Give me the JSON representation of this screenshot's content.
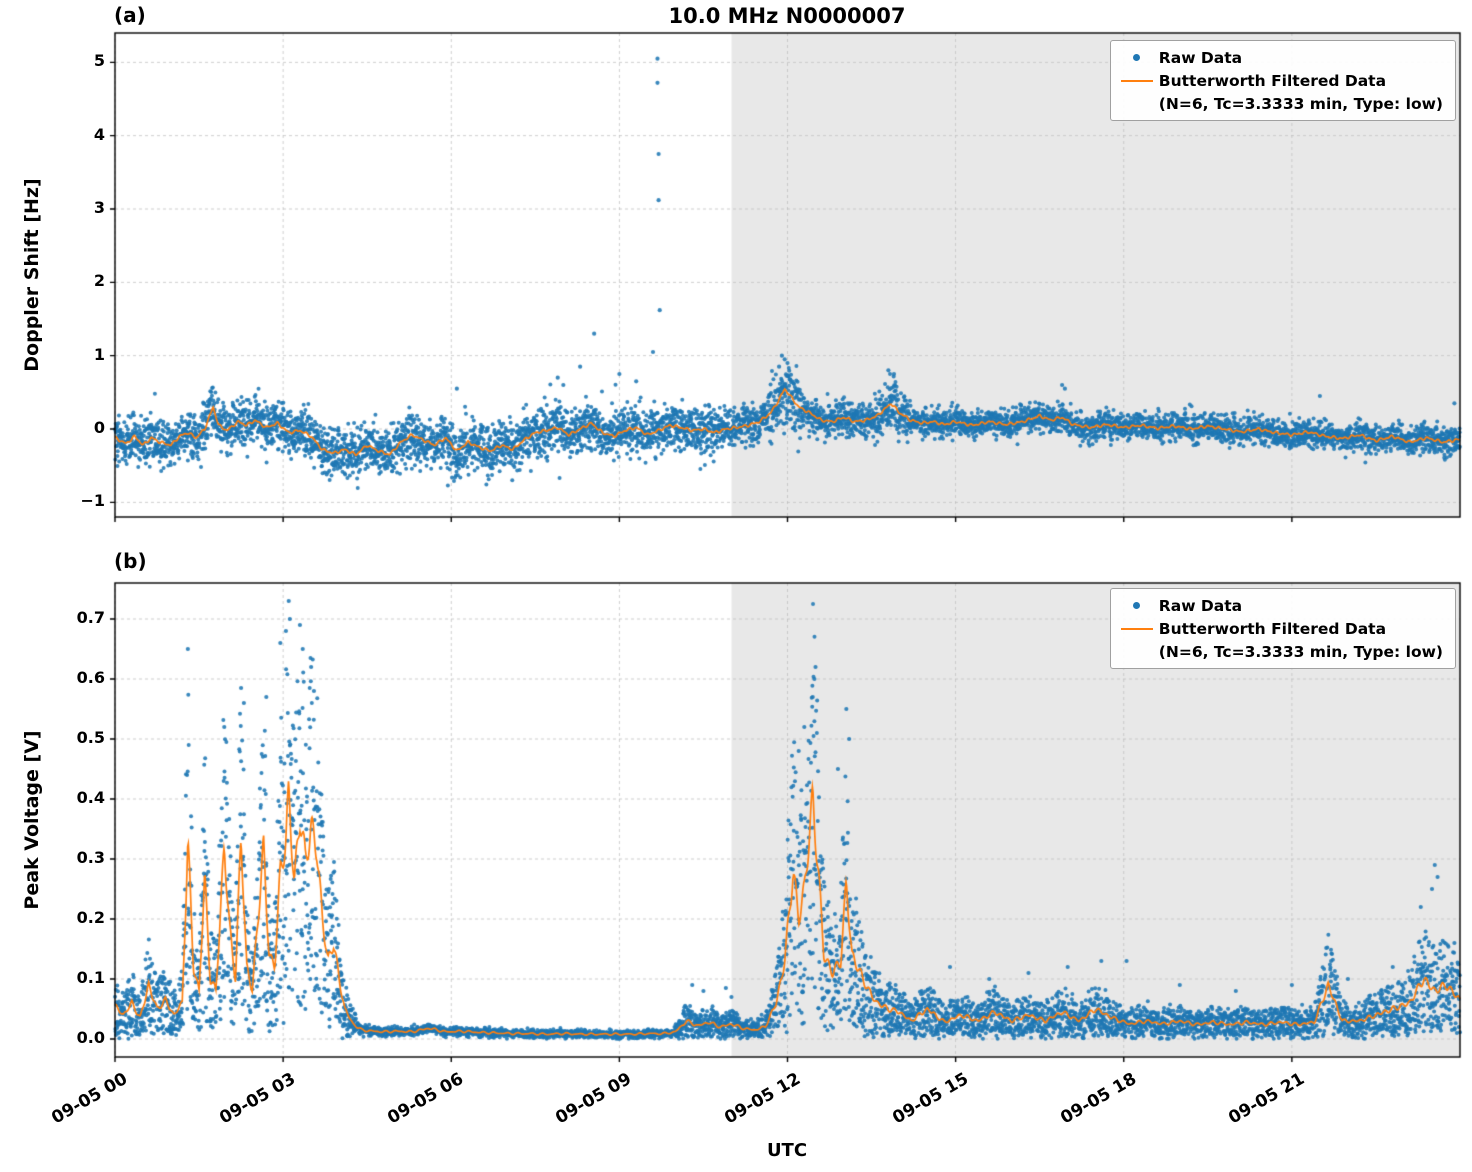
{
  "title": "10.0 MHz N0000007",
  "xlabel": "UTC",
  "legend": {
    "raw_label": "Raw Data",
    "filtered_label": "Butterworth Filtered Data",
    "filtered_params": "(N=6, Tc=3.3333 min, Type: low)"
  },
  "colors": {
    "raw": "#1f77b4",
    "filtered": "#ff7f0e",
    "shade": "rgba(0,0,0,0.09)",
    "grid": "#bbbbbb",
    "spine": "#000000"
  },
  "x_range": [
    0,
    24
  ],
  "shaded_region": [
    11.0,
    24
  ],
  "x_ticks": {
    "values": [
      0,
      3,
      6,
      9,
      12,
      15,
      18,
      21
    ],
    "labels": [
      "09-05 00",
      "09-05 03",
      "09-05 06",
      "09-05 09",
      "09-05 12",
      "09-05 15",
      "09-05 18",
      "09-05 21"
    ]
  },
  "chart_data": [
    {
      "type": "scatter",
      "label": "(a)",
      "ylabel": "Doppler Shift [Hz]",
      "ylim": [
        -1.2,
        5.4
      ],
      "y_ticks": {
        "values": [
          -1,
          0,
          1,
          2,
          3,
          4,
          5
        ],
        "labels": [
          "−1",
          "0",
          "1",
          "2",
          "3",
          "4",
          "5"
        ]
      },
      "series": [
        {
          "name": "Raw Data",
          "kind": "scatter"
        },
        {
          "name": "Butterworth Filtered Data (N=6, Tc=3.3333 min, Type: low)",
          "kind": "line"
        }
      ],
      "filtered_points": [
        [
          0,
          -0.12
        ],
        [
          0.2,
          -0.2
        ],
        [
          0.35,
          -0.1
        ],
        [
          0.5,
          -0.22
        ],
        [
          0.65,
          -0.12
        ],
        [
          0.8,
          -0.18
        ],
        [
          1.0,
          -0.22
        ],
        [
          1.15,
          -0.1
        ],
        [
          1.3,
          -0.05
        ],
        [
          1.45,
          -0.12
        ],
        [
          1.6,
          0.0
        ],
        [
          1.75,
          0.3
        ],
        [
          1.85,
          0.05
        ],
        [
          2.0,
          -0.02
        ],
        [
          2.2,
          0.1
        ],
        [
          2.35,
          0.05
        ],
        [
          2.5,
          0.12
        ],
        [
          2.7,
          0.02
        ],
        [
          2.9,
          0.08
        ],
        [
          3.1,
          -0.05
        ],
        [
          3.3,
          -0.02
        ],
        [
          3.5,
          -0.1
        ],
        [
          3.7,
          -0.28
        ],
        [
          3.9,
          -0.33
        ],
        [
          4.1,
          -0.28
        ],
        [
          4.3,
          -0.35
        ],
        [
          4.5,
          -0.22
        ],
        [
          4.7,
          -0.3
        ],
        [
          4.9,
          -0.35
        ],
        [
          5.1,
          -0.18
        ],
        [
          5.3,
          -0.08
        ],
        [
          5.5,
          -0.15
        ],
        [
          5.7,
          -0.22
        ],
        [
          5.9,
          -0.12
        ],
        [
          6.1,
          -0.3
        ],
        [
          6.3,
          -0.18
        ],
        [
          6.5,
          -0.25
        ],
        [
          6.7,
          -0.3
        ],
        [
          6.9,
          -0.22
        ],
        [
          7.1,
          -0.28
        ],
        [
          7.3,
          -0.15
        ],
        [
          7.5,
          -0.05
        ],
        [
          7.7,
          -0.02
        ],
        [
          7.9,
          0.02
        ],
        [
          8.1,
          -0.08
        ],
        [
          8.3,
          0.0
        ],
        [
          8.5,
          0.08
        ],
        [
          8.7,
          -0.05
        ],
        [
          8.9,
          -0.1
        ],
        [
          9.1,
          -0.02
        ],
        [
          9.3,
          0.02
        ],
        [
          9.5,
          -0.08
        ],
        [
          9.7,
          -0.02
        ],
        [
          9.9,
          0.05
        ],
        [
          10.1,
          0.02
        ],
        [
          10.3,
          -0.02
        ],
        [
          10.5,
          0.0
        ],
        [
          10.7,
          -0.05
        ],
        [
          10.9,
          0.0
        ],
        [
          11.1,
          0.02
        ],
        [
          11.3,
          0.05
        ],
        [
          11.5,
          0.1
        ],
        [
          11.7,
          0.22
        ],
        [
          11.85,
          0.4
        ],
        [
          11.95,
          0.55
        ],
        [
          12.05,
          0.45
        ],
        [
          12.2,
          0.3
        ],
        [
          12.4,
          0.22
        ],
        [
          12.6,
          0.12
        ],
        [
          12.8,
          0.1
        ],
        [
          13.0,
          0.16
        ],
        [
          13.2,
          0.1
        ],
        [
          13.4,
          0.12
        ],
        [
          13.6,
          0.18
        ],
        [
          13.85,
          0.35
        ],
        [
          14.0,
          0.22
        ],
        [
          14.2,
          0.12
        ],
        [
          14.4,
          0.08
        ],
        [
          14.6,
          0.1
        ],
        [
          14.8,
          0.06
        ],
        [
          15.0,
          0.1
        ],
        [
          15.3,
          0.05
        ],
        [
          15.6,
          0.1
        ],
        [
          15.9,
          0.06
        ],
        [
          16.2,
          0.1
        ],
        [
          16.5,
          0.18
        ],
        [
          16.7,
          0.12
        ],
        [
          16.9,
          0.16
        ],
        [
          17.1,
          0.06
        ],
        [
          17.4,
          0.02
        ],
        [
          17.7,
          0.06
        ],
        [
          18.0,
          0.02
        ],
        [
          18.3,
          0.05
        ],
        [
          18.6,
          0.01
        ],
        [
          18.9,
          0.04
        ],
        [
          19.2,
          0.0
        ],
        [
          19.5,
          0.04
        ],
        [
          19.8,
          0.0
        ],
        [
          20.1,
          -0.04
        ],
        [
          20.4,
          0.0
        ],
        [
          20.7,
          -0.05
        ],
        [
          21.0,
          -0.08
        ],
        [
          21.3,
          -0.04
        ],
        [
          21.6,
          -0.1
        ],
        [
          21.9,
          -0.13
        ],
        [
          22.2,
          -0.08
        ],
        [
          22.5,
          -0.16
        ],
        [
          22.8,
          -0.1
        ],
        [
          23.1,
          -0.18
        ],
        [
          23.4,
          -0.12
        ],
        [
          23.7,
          -0.18
        ],
        [
          24,
          -0.14
        ]
      ],
      "raw_noise": {
        "n_points": 6500,
        "segments": [
          [
            0,
            10.8,
            0.16
          ],
          [
            10.8,
            14,
            0.12
          ],
          [
            14,
            24,
            0.095
          ]
        ],
        "boosts": [
          [
            11.95,
            0.3,
            1.7
          ],
          [
            13.85,
            0.3,
            1.4
          ]
        ],
        "low_tail_range": [
          2.5,
          9.6
        ],
        "low_tail_chance": 0.012,
        "high_tail_range": [
          7.2,
          9.6
        ],
        "high_tail_chance": 0.02
      },
      "outliers": [
        [
          9.68,
          5.05
        ],
        [
          9.68,
          4.72
        ],
        [
          9.7,
          3.75
        ],
        [
          9.7,
          3.12
        ],
        [
          9.72,
          1.62
        ],
        [
          9.6,
          1.05
        ],
        [
          8.55,
          1.3
        ],
        [
          8.3,
          0.85
        ],
        [
          7.9,
          0.7
        ],
        [
          8.0,
          0.6
        ],
        [
          9.0,
          0.75
        ],
        [
          9.3,
          0.65
        ],
        [
          6.1,
          0.55
        ],
        [
          11.9,
          1.0
        ],
        [
          11.95,
          0.95
        ],
        [
          12.0,
          0.9
        ],
        [
          11.85,
          0.85
        ],
        [
          13.8,
          0.8
        ],
        [
          13.9,
          0.75
        ],
        [
          16.9,
          0.6
        ],
        [
          16.95,
          0.55
        ],
        [
          21.5,
          0.45
        ],
        [
          23.9,
          0.35
        ]
      ]
    },
    {
      "type": "scatter",
      "label": "(b)",
      "ylabel": "Peak Voltage [V]",
      "ylim": [
        -0.03,
        0.76
      ],
      "y_ticks": {
        "values": [
          0.0,
          0.1,
          0.2,
          0.3,
          0.4,
          0.5,
          0.6,
          0.7
        ],
        "labels": [
          "0.0",
          "0.1",
          "0.2",
          "0.3",
          "0.4",
          "0.5",
          "0.6",
          "0.7"
        ]
      },
      "series": [
        {
          "name": "Raw Data",
          "kind": "scatter"
        },
        {
          "name": "Butterworth Filtered Data (N=6, Tc=3.3333 min, Type: low)",
          "kind": "line"
        }
      ],
      "filtered_points": [
        [
          0,
          0.055
        ],
        [
          0.15,
          0.04
        ],
        [
          0.3,
          0.06
        ],
        [
          0.45,
          0.035
        ],
        [
          0.6,
          0.09
        ],
        [
          0.75,
          0.05
        ],
        [
          0.9,
          0.065
        ],
        [
          1.05,
          0.04
        ],
        [
          1.2,
          0.06
        ],
        [
          1.3,
          0.33
        ],
        [
          1.4,
          0.12
        ],
        [
          1.5,
          0.08
        ],
        [
          1.6,
          0.27
        ],
        [
          1.7,
          0.1
        ],
        [
          1.8,
          0.08
        ],
        [
          1.95,
          0.32
        ],
        [
          2.05,
          0.18
        ],
        [
          2.15,
          0.1
        ],
        [
          2.25,
          0.34
        ],
        [
          2.35,
          0.12
        ],
        [
          2.45,
          0.08
        ],
        [
          2.55,
          0.2
        ],
        [
          2.65,
          0.32
        ],
        [
          2.75,
          0.14
        ],
        [
          2.85,
          0.12
        ],
        [
          2.95,
          0.28
        ],
        [
          3.05,
          0.33
        ],
        [
          3.1,
          0.41
        ],
        [
          3.2,
          0.26
        ],
        [
          3.3,
          0.37
        ],
        [
          3.4,
          0.3
        ],
        [
          3.5,
          0.35
        ],
        [
          3.6,
          0.32
        ],
        [
          3.7,
          0.2
        ],
        [
          3.8,
          0.13
        ],
        [
          3.9,
          0.16
        ],
        [
          4.0,
          0.1
        ],
        [
          4.1,
          0.05
        ],
        [
          4.25,
          0.025
        ],
        [
          4.4,
          0.015
        ],
        [
          4.6,
          0.013
        ],
        [
          4.8,
          0.012
        ],
        [
          5.0,
          0.013
        ],
        [
          5.3,
          0.012
        ],
        [
          5.6,
          0.018
        ],
        [
          5.9,
          0.012
        ],
        [
          6.2,
          0.013
        ],
        [
          6.5,
          0.011
        ],
        [
          6.8,
          0.01
        ],
        [
          7.1,
          0.009
        ],
        [
          7.4,
          0.009
        ],
        [
          7.7,
          0.008
        ],
        [
          8.0,
          0.009
        ],
        [
          8.3,
          0.008
        ],
        [
          8.6,
          0.008
        ],
        [
          8.9,
          0.008
        ],
        [
          9.2,
          0.008
        ],
        [
          9.5,
          0.009
        ],
        [
          9.8,
          0.009
        ],
        [
          10.0,
          0.012
        ],
        [
          10.2,
          0.03
        ],
        [
          10.4,
          0.022
        ],
        [
          10.6,
          0.028
        ],
        [
          10.8,
          0.02
        ],
        [
          11.0,
          0.025
        ],
        [
          11.2,
          0.018
        ],
        [
          11.4,
          0.015
        ],
        [
          11.6,
          0.02
        ],
        [
          11.8,
          0.06
        ],
        [
          11.95,
          0.13
        ],
        [
          12.1,
          0.28
        ],
        [
          12.2,
          0.2
        ],
        [
          12.3,
          0.25
        ],
        [
          12.45,
          0.4
        ],
        [
          12.55,
          0.28
        ],
        [
          12.65,
          0.14
        ],
        [
          12.8,
          0.11
        ],
        [
          12.95,
          0.13
        ],
        [
          13.05,
          0.26
        ],
        [
          13.15,
          0.14
        ],
        [
          13.3,
          0.11
        ],
        [
          13.45,
          0.08
        ],
        [
          13.6,
          0.06
        ],
        [
          13.8,
          0.05
        ],
        [
          14.0,
          0.045
        ],
        [
          14.2,
          0.03
        ],
        [
          14.5,
          0.05
        ],
        [
          14.8,
          0.028
        ],
        [
          15.1,
          0.04
        ],
        [
          15.4,
          0.03
        ],
        [
          15.7,
          0.045
        ],
        [
          16.0,
          0.03
        ],
        [
          16.3,
          0.04
        ],
        [
          16.6,
          0.03
        ],
        [
          16.9,
          0.045
        ],
        [
          17.2,
          0.03
        ],
        [
          17.5,
          0.05
        ],
        [
          17.8,
          0.035
        ],
        [
          18.1,
          0.025
        ],
        [
          18.4,
          0.03
        ],
        [
          18.7,
          0.025
        ],
        [
          19.0,
          0.03
        ],
        [
          19.3,
          0.024
        ],
        [
          19.6,
          0.028
        ],
        [
          19.9,
          0.024
        ],
        [
          20.2,
          0.028
        ],
        [
          20.5,
          0.024
        ],
        [
          20.8,
          0.028
        ],
        [
          21.1,
          0.024
        ],
        [
          21.4,
          0.028
        ],
        [
          21.65,
          0.09
        ],
        [
          21.9,
          0.03
        ],
        [
          22.2,
          0.03
        ],
        [
          22.5,
          0.04
        ],
        [
          22.8,
          0.05
        ],
        [
          23.1,
          0.06
        ],
        [
          23.35,
          0.1
        ],
        [
          23.55,
          0.08
        ],
        [
          23.75,
          0.09
        ],
        [
          24,
          0.065
        ]
      ],
      "raw_noise": {
        "n_points": 6200,
        "quiet_range": [
          4.3,
          10.0
        ],
        "quiet_sigma": 0.0035,
        "mult_up": 0.5,
        "mult_cap": 1.85,
        "additive": 0.006
      },
      "outliers": [
        [
          3.1,
          0.73
        ],
        [
          3.12,
          0.7
        ],
        [
          3.05,
          0.68
        ],
        [
          2.95,
          0.66
        ],
        [
          3.3,
          0.69
        ],
        [
          3.35,
          0.65
        ],
        [
          1.3,
          0.65
        ],
        [
          2.25,
          0.585
        ],
        [
          2.3,
          0.56
        ],
        [
          1.95,
          0.52
        ],
        [
          2.7,
          0.57
        ],
        [
          3.5,
          0.62
        ],
        [
          3.55,
          0.58
        ],
        [
          12.5,
          0.62
        ],
        [
          12.48,
          0.6
        ],
        [
          12.45,
          0.57
        ],
        [
          12.3,
          0.52
        ],
        [
          12.2,
          0.48
        ],
        [
          13.05,
          0.55
        ],
        [
          13.1,
          0.5
        ],
        [
          12.9,
          0.45
        ],
        [
          10.3,
          0.09
        ],
        [
          10.5,
          0.08
        ],
        [
          11.0,
          0.07
        ],
        [
          10.9,
          0.085
        ],
        [
          14.9,
          0.12
        ],
        [
          15.6,
          0.1
        ],
        [
          16.3,
          0.11
        ],
        [
          17.0,
          0.12
        ],
        [
          17.6,
          0.13
        ],
        [
          18.05,
          0.13
        ],
        [
          19.0,
          0.09
        ],
        [
          20.0,
          0.08
        ],
        [
          21.0,
          0.09
        ],
        [
          21.7,
          0.13
        ],
        [
          22.0,
          0.1
        ],
        [
          22.8,
          0.12
        ],
        [
          23.3,
          0.22
        ],
        [
          23.5,
          0.25
        ],
        [
          23.55,
          0.29
        ],
        [
          23.6,
          0.27
        ],
        [
          23.9,
          0.16
        ]
      ]
    }
  ]
}
